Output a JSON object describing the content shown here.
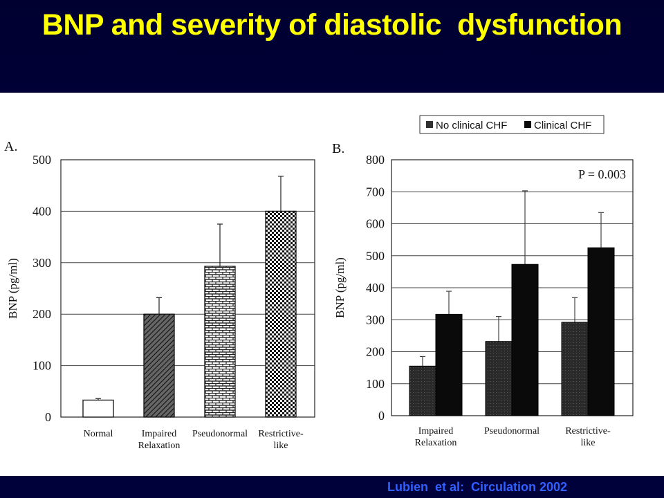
{
  "title": "BNP and severity of diastolic  dysfunction",
  "citation": "Lubien  et al:  Circulation 2002",
  "colors": {
    "title": "#ffff00",
    "citation": "#3060ff",
    "background": "#000038"
  },
  "chart_data": [
    {
      "type": "bar",
      "panel_label": "A.",
      "ylabel": "BNP (pg/ml)",
      "ylim": [
        0,
        500
      ],
      "yticks": [
        0,
        100,
        200,
        300,
        400,
        500
      ],
      "grid": true,
      "categories": [
        [
          "Normal"
        ],
        [
          "Impaired",
          "Relaxation"
        ],
        [
          "Pseudonormal"
        ],
        [
          "Restrictive-",
          "like"
        ]
      ],
      "series": [
        {
          "values": [
            33,
            200,
            293,
            400
          ],
          "error": [
            3,
            32,
            82,
            68
          ]
        }
      ],
      "patterns": [
        "white",
        "hatch",
        "brick",
        "check"
      ]
    },
    {
      "type": "bar",
      "panel_label": "B.",
      "ylabel": "BNP (pg/ml)",
      "ylim": [
        0,
        800
      ],
      "yticks": [
        0,
        100,
        200,
        300,
        400,
        500,
        600,
        700,
        800
      ],
      "grid": true,
      "annotation": "P = 0.003",
      "legend_position": "top",
      "categories": [
        [
          "Impaired",
          "Relaxation"
        ],
        [
          "Pseudonormal"
        ],
        [
          "Restrictive-",
          "like"
        ]
      ],
      "series": [
        {
          "name": "No clinical CHF",
          "values": [
            155,
            232,
            292
          ],
          "error": [
            30,
            78,
            77
          ],
          "color": "#303030"
        },
        {
          "name": "Clinical CHF",
          "values": [
            317,
            473,
            525
          ],
          "error": [
            72,
            230,
            110
          ],
          "color": "#0a0a0a"
        }
      ]
    }
  ]
}
